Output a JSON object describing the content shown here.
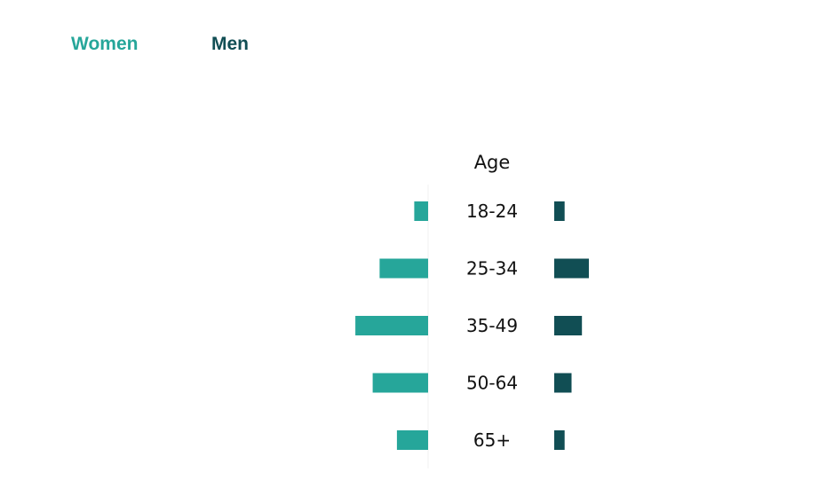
{
  "legend": {
    "women_label": "Women",
    "men_label": "Men"
  },
  "chart_data": {
    "type": "bar",
    "orientation": "horizontal-butterfly",
    "category_header": "Age",
    "categories": [
      "18-24",
      "25-34",
      "35-49",
      "50-64",
      "65+"
    ],
    "series": [
      {
        "name": "Women",
        "values": [
          4,
          14,
          21,
          16,
          9
        ]
      },
      {
        "name": "Men",
        "values": [
          3,
          10,
          8,
          5,
          3
        ]
      }
    ],
    "colors": {
      "Women": "#26a69a",
      "Men": "#114e54"
    },
    "legend_position": "top-left",
    "grid": false
  }
}
